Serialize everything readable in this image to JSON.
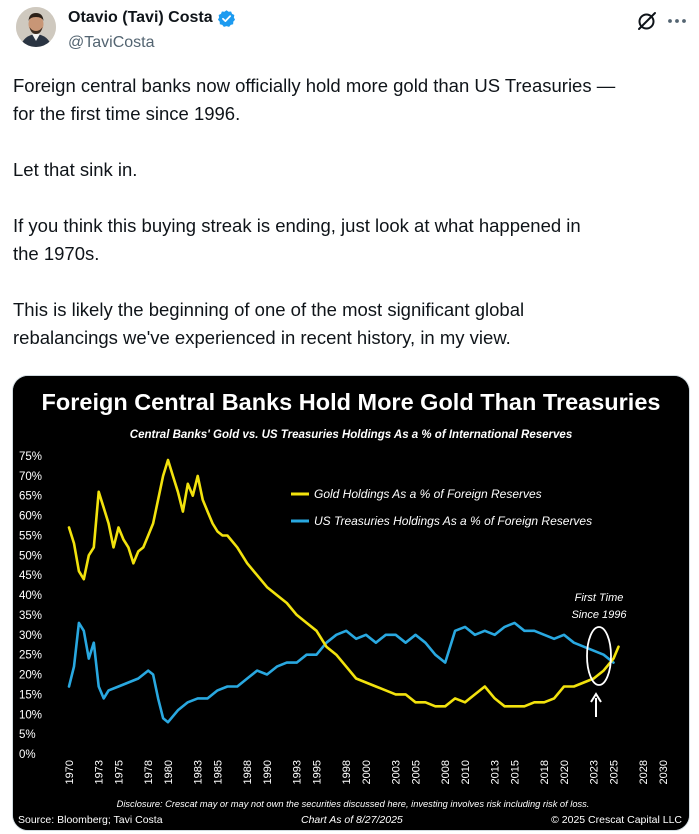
{
  "author": {
    "display_name": "Otavio (Tavi) Costa",
    "handle": "@TaviCosta",
    "verified": true
  },
  "tweet": {
    "paragraphs": [
      "Foreign central banks now officially hold more gold than US Treasuries —\nfor the first time since 1996.",
      "Let that sink in.",
      "If you think this buying streak is ending, just look at what happened in\nthe 1970s.",
      "This is likely the beginning of one of the most significant global\nrebalancings we've experienced in recent history, in my view."
    ]
  },
  "icons": {
    "grok": "grok-icon",
    "more": "more-icon",
    "verified": "verified-badge-icon"
  },
  "colors": {
    "verified_blue": "#1d9bf0",
    "gold_series": "#f2e20d",
    "treasury_series": "#29a8e0",
    "chart_background": "#000000"
  },
  "chart_data": {
    "type": "line",
    "title": "Foreign Central Banks Hold More Gold Than Treasuries",
    "subtitle": "Central Banks' Gold vs. US Treasuries Holdings As a % of International Reserves",
    "xlabel": "",
    "ylabel": "",
    "ylim": [
      0,
      75
    ],
    "xlim": [
      1970,
      2030
    ],
    "y_ticks": [
      "0%",
      "5%",
      "10%",
      "15%",
      "20%",
      "25%",
      "30%",
      "35%",
      "40%",
      "45%",
      "50%",
      "55%",
      "60%",
      "65%",
      "70%",
      "75%"
    ],
    "x_ticks": [
      "1970",
      "1973",
      "1975",
      "1978",
      "1980",
      "1983",
      "1985",
      "1988",
      "1990",
      "1993",
      "1995",
      "1998",
      "2000",
      "2003",
      "2005",
      "2008",
      "2010",
      "2013",
      "2015",
      "2018",
      "2020",
      "2023",
      "2025",
      "2028",
      "2030"
    ],
    "grid": false,
    "legend_position": "top-right",
    "series": [
      {
        "name": "Gold Holdings As a % of Foreign Reserves",
        "color": "#f2e20d",
        "x": [
          1970,
          1970.5,
          1971,
          1971.5,
          1972,
          1972.5,
          1973,
          1973.5,
          1974,
          1974.5,
          1975,
          1975.5,
          1976,
          1976.5,
          1977,
          1977.5,
          1978,
          1978.5,
          1979,
          1979.5,
          1980,
          1980.5,
          1981,
          1981.5,
          1982,
          1982.5,
          1983,
          1983.5,
          1984,
          1984.5,
          1985,
          1985.5,
          1986,
          1987,
          1988,
          1989,
          1990,
          1991,
          1992,
          1993,
          1994,
          1995,
          1996,
          1997,
          1998,
          1999,
          2000,
          2001,
          2002,
          2003,
          2004,
          2005,
          2006,
          2007,
          2008,
          2009,
          2010,
          2011,
          2012,
          2013,
          2014,
          2015,
          2016,
          2017,
          2018,
          2019,
          2020,
          2021,
          2022,
          2023,
          2024,
          2025,
          2025.5
        ],
        "values": [
          57,
          53,
          46,
          44,
          50,
          52,
          66,
          62,
          58,
          52,
          57,
          54,
          52,
          48,
          51,
          52,
          55,
          58,
          64,
          70,
          74,
          70,
          66,
          61,
          68,
          65,
          70,
          64,
          61,
          58,
          56,
          55,
          55,
          52,
          48,
          45,
          42,
          40,
          38,
          35,
          33,
          31,
          27,
          25,
          22,
          19,
          18,
          17,
          16,
          15,
          15,
          13,
          13,
          12,
          12,
          14,
          13,
          15,
          17,
          14,
          12,
          12,
          12,
          13,
          13,
          14,
          17,
          17,
          18,
          19,
          21,
          24,
          27
        ]
      },
      {
        "name": "US Treasuries Holdings As a % of Foreign Reserves",
        "color": "#29a8e0",
        "x": [
          1970,
          1970.5,
          1971,
          1971.5,
          1972,
          1972.5,
          1973,
          1973.5,
          1974,
          1975,
          1976,
          1977,
          1978,
          1978.5,
          1979,
          1979.5,
          1980,
          1981,
          1982,
          1983,
          1984,
          1985,
          1986,
          1987,
          1988,
          1989,
          1990,
          1991,
          1992,
          1993,
          1994,
          1995,
          1996,
          1997,
          1998,
          1999,
          2000,
          2001,
          2002,
          2003,
          2004,
          2005,
          2006,
          2007,
          2008,
          2009,
          2010,
          2011,
          2012,
          2013,
          2014,
          2015,
          2016,
          2017,
          2018,
          2019,
          2020,
          2021,
          2022,
          2023,
          2024,
          2025
        ],
        "values": [
          17,
          22,
          33,
          31,
          24,
          28,
          17,
          14,
          16,
          17,
          18,
          19,
          21,
          20,
          14,
          9,
          8,
          11,
          13,
          14,
          14,
          16,
          17,
          17,
          19,
          21,
          20,
          22,
          23,
          23,
          25,
          25,
          28,
          30,
          31,
          29,
          30,
          28,
          30,
          30,
          28,
          30,
          28,
          25,
          23,
          31,
          32,
          30,
          31,
          30,
          32,
          33,
          31,
          31,
          30,
          29,
          30,
          28,
          27,
          26,
          25,
          23
        ]
      }
    ],
    "annotations": [
      {
        "text": "First Time",
        "x": 2025.3,
        "y": 36
      },
      {
        "text": "Since 1996",
        "x": 2025.3,
        "y": 33.5
      }
    ],
    "footer": {
      "disclosure": "Disclosure: Crescat may or may not own the securities discussed here, investing involves risk including risk of loss.",
      "source": "Source: Bloomberg; Tavi Costa",
      "as_of": "Chart As of 8/27/2025",
      "copyright": "© 2025 Crescat Capital LLC"
    }
  }
}
